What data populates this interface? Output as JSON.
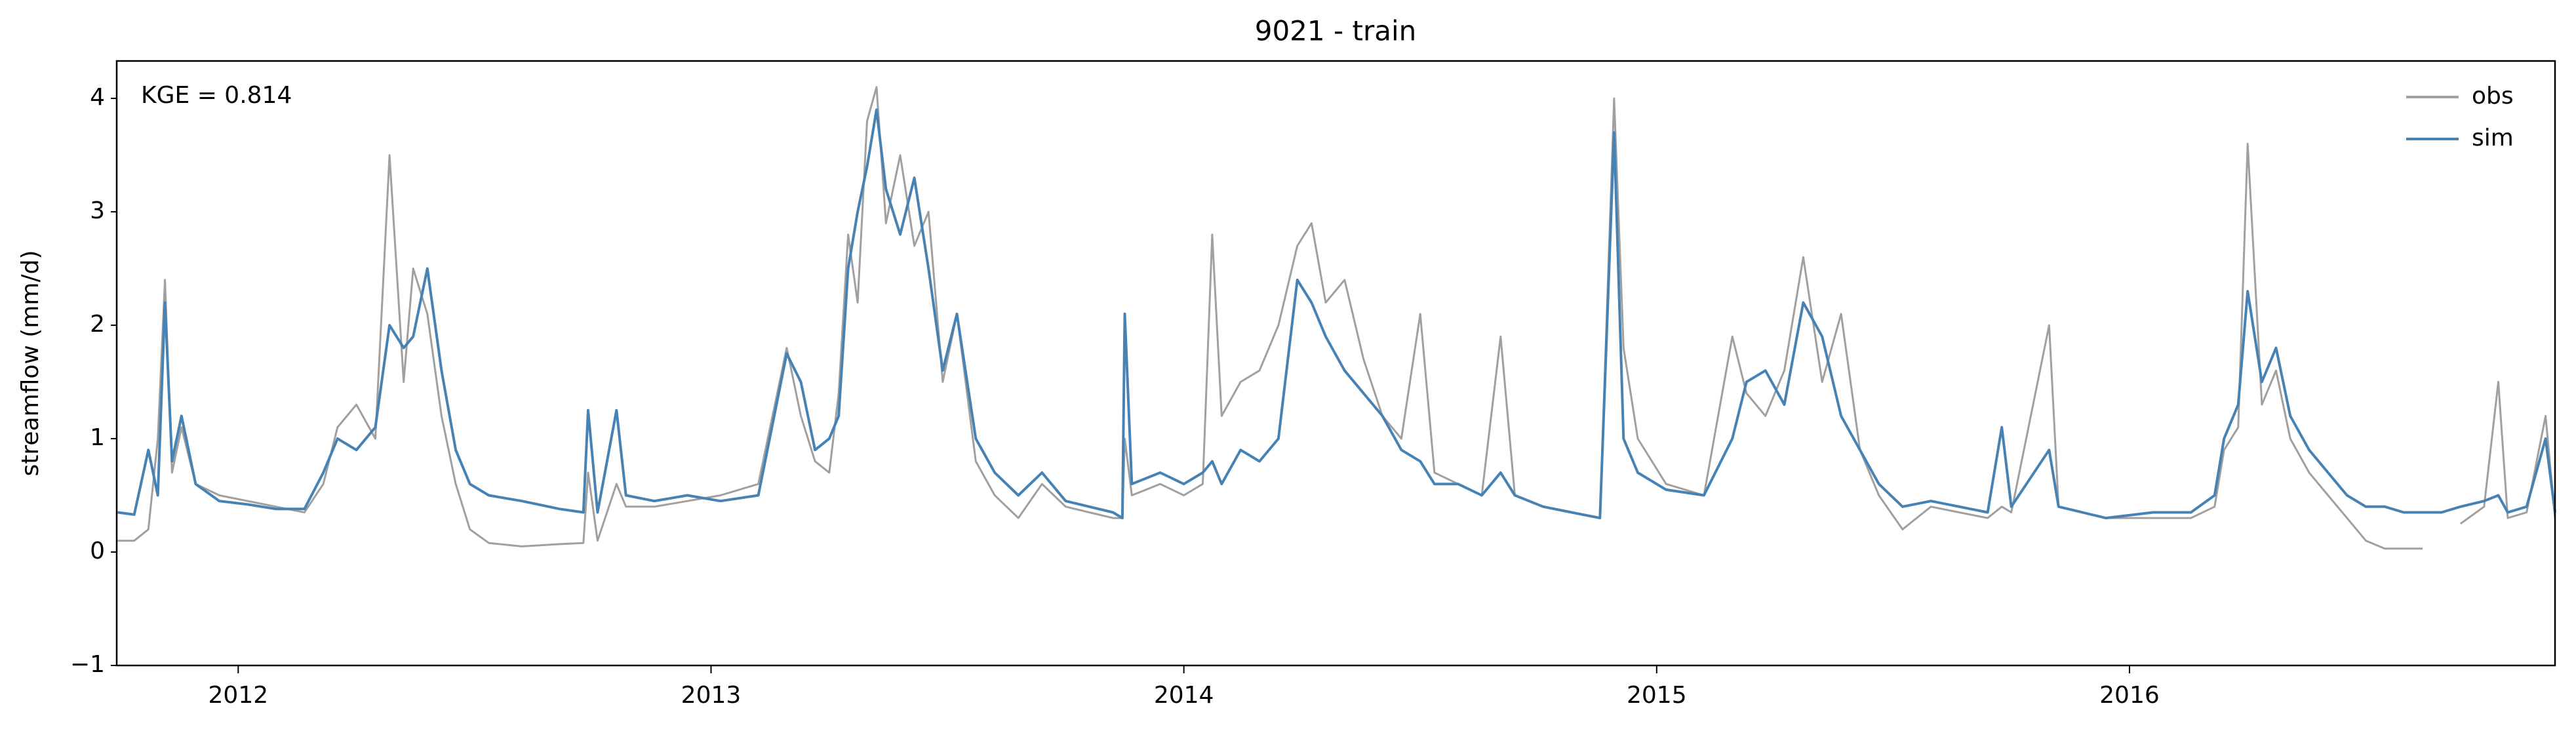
{
  "chart_data": {
    "type": "line",
    "title": "9021 - train",
    "ylabel": "streamflow (mm/d)",
    "annotation": "KGE = 0.814",
    "legend": "upper right",
    "grid": false,
    "xlim": [
      2011.743,
      2016.9
    ],
    "xticks": [
      2012,
      2013,
      2014,
      2015,
      2016
    ],
    "ylim": [
      -1,
      4.33
    ],
    "yticks": [
      {
        "value": -1,
        "label": "−1"
      },
      0,
      1,
      2,
      3,
      4
    ],
    "x": [
      2011.745,
      2011.78,
      2011.81,
      2011.83,
      2011.845,
      2011.86,
      2011.88,
      2011.91,
      2011.96,
      2012.02,
      2012.08,
      2012.14,
      2012.18,
      2012.21,
      2012.25,
      2012.29,
      2012.32,
      2012.35,
      2012.37,
      2012.4,
      2012.43,
      2012.46,
      2012.49,
      2012.53,
      2012.6,
      2012.68,
      2012.73,
      2012.74,
      2012.76,
      2012.8,
      2012.82,
      2012.88,
      2012.95,
      2013.02,
      2013.1,
      2013.16,
      2013.19,
      2013.22,
      2013.25,
      2013.27,
      2013.29,
      2013.31,
      2013.33,
      2013.35,
      2013.37,
      2013.4,
      2013.43,
      2013.46,
      2013.49,
      2013.52,
      2013.56,
      2013.6,
      2013.65,
      2013.7,
      2013.75,
      2013.8,
      2013.85,
      2013.87,
      2013.875,
      2013.89,
      2013.95,
      2014.0,
      2014.04,
      2014.06,
      2014.08,
      2014.12,
      2014.16,
      2014.2,
      2014.24,
      2014.27,
      2014.3,
      2014.34,
      2014.38,
      2014.42,
      2014.46,
      2014.5,
      2014.53,
      2014.58,
      2014.63,
      2014.67,
      2014.7,
      2014.76,
      2014.82,
      2014.88,
      2014.91,
      2014.93,
      2014.96,
      2015.02,
      2015.1,
      2015.16,
      2015.19,
      2015.23,
      2015.27,
      2015.31,
      2015.35,
      2015.39,
      2015.43,
      2015.47,
      2015.52,
      2015.58,
      2015.64,
      2015.7,
      2015.73,
      2015.75,
      2015.83,
      2015.85,
      2015.95,
      2016.05,
      2016.13,
      2016.18,
      2016.2,
      2016.23,
      2016.25,
      2016.28,
      2016.31,
      2016.34,
      2016.38,
      2016.42,
      2016.46,
      2016.5,
      2016.54,
      2016.58,
      2016.62,
      2016.66,
      2016.7,
      2016.75,
      2016.78,
      2016.8,
      2016.84,
      2016.88,
      2016.9
    ],
    "series": [
      {
        "name": "obs",
        "color": "#a0a0a0",
        "values": [
          0.1,
          0.1,
          0.2,
          1.0,
          2.4,
          0.7,
          1.1,
          0.6,
          0.5,
          0.45,
          0.4,
          0.35,
          0.6,
          1.1,
          1.3,
          1.0,
          3.5,
          1.5,
          2.5,
          2.1,
          1.2,
          0.6,
          0.2,
          0.08,
          0.05,
          0.07,
          0.08,
          0.7,
          0.1,
          0.6,
          0.4,
          0.4,
          0.45,
          0.5,
          0.6,
          1.8,
          1.2,
          0.8,
          0.7,
          1.4,
          2.8,
          2.2,
          3.8,
          4.1,
          2.9,
          3.5,
          2.7,
          3.0,
          1.5,
          2.1,
          0.8,
          0.5,
          0.3,
          0.6,
          0.4,
          0.35,
          0.3,
          0.3,
          1.0,
          0.5,
          0.6,
          0.5,
          0.6,
          2.8,
          1.2,
          1.5,
          1.6,
          2.0,
          2.7,
          2.9,
          2.2,
          2.4,
          1.7,
          1.2,
          1.0,
          2.1,
          0.7,
          0.6,
          0.5,
          1.9,
          0.5,
          0.4,
          0.35,
          0.3,
          4.0,
          1.8,
          1.0,
          0.6,
          0.5,
          1.9,
          1.4,
          1.2,
          1.6,
          2.6,
          1.5,
          2.1,
          0.9,
          0.5,
          0.2,
          0.4,
          0.35,
          0.3,
          0.4,
          0.35,
          2.0,
          0.4,
          0.3,
          0.3,
          0.3,
          0.4,
          0.9,
          1.1,
          3.6,
          1.3,
          1.6,
          1.0,
          0.7,
          0.5,
          0.3,
          0.1,
          0.03,
          0.03,
          0.03,
          null,
          0.25,
          0.4,
          1.5,
          0.3,
          0.35,
          1.2,
          0.3
        ]
      },
      {
        "name": "sim",
        "color": "#4682b4",
        "values": [
          0.35,
          0.33,
          0.9,
          0.5,
          2.2,
          0.8,
          1.2,
          0.6,
          0.45,
          0.42,
          0.38,
          0.38,
          0.7,
          1.0,
          0.9,
          1.1,
          2.0,
          1.8,
          1.9,
          2.5,
          1.6,
          0.9,
          0.6,
          0.5,
          0.45,
          0.38,
          0.35,
          1.25,
          0.35,
          1.25,
          0.5,
          0.45,
          0.5,
          0.45,
          0.5,
          1.75,
          1.5,
          0.9,
          1.0,
          1.2,
          2.5,
          3.0,
          3.4,
          3.9,
          3.2,
          2.8,
          3.3,
          2.5,
          1.6,
          2.1,
          1.0,
          0.7,
          0.5,
          0.7,
          0.45,
          0.4,
          0.35,
          0.3,
          2.1,
          0.6,
          0.7,
          0.6,
          0.7,
          0.8,
          0.6,
          0.9,
          0.8,
          1.0,
          2.4,
          2.2,
          1.9,
          1.6,
          1.4,
          1.2,
          0.9,
          0.8,
          0.6,
          0.6,
          0.5,
          0.7,
          0.5,
          0.4,
          0.35,
          0.3,
          3.7,
          1.0,
          0.7,
          0.55,
          0.5,
          1.0,
          1.5,
          1.6,
          1.3,
          2.2,
          1.9,
          1.2,
          0.9,
          0.6,
          0.4,
          0.45,
          0.4,
          0.35,
          1.1,
          0.4,
          0.9,
          0.4,
          0.3,
          0.35,
          0.35,
          0.5,
          1.0,
          1.3,
          2.3,
          1.5,
          1.8,
          1.2,
          0.9,
          0.7,
          0.5,
          0.4,
          0.4,
          0.35,
          0.35,
          0.35,
          0.4,
          0.45,
          0.5,
          0.35,
          0.4,
          1.0,
          0.35
        ]
      }
    ]
  }
}
